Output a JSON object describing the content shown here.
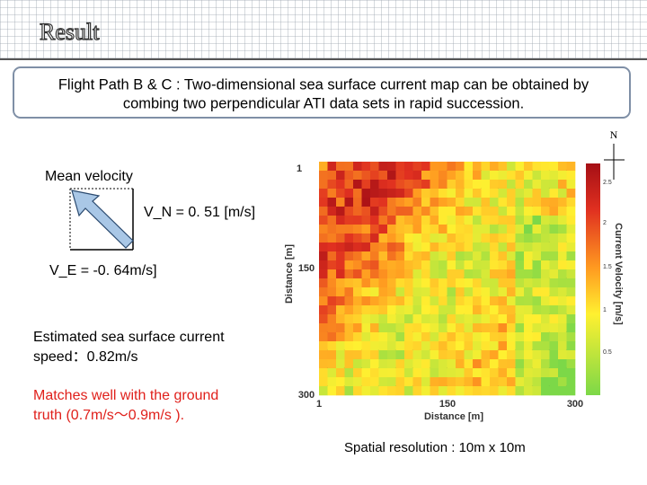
{
  "header": {
    "title": "Result"
  },
  "summary_box": {
    "lines": [
      "Flight Path B & C : Two-dimensional sea surface current map can be obtained by",
      "combing two perpendicular ATI data sets in rapid succession."
    ]
  },
  "compass": {
    "label": "N"
  },
  "velocity_diagram": {
    "title": "Mean velocity",
    "north_component": "V_N = 0. 51 [m/s]",
    "east_component": "V_E = -0. 64m/s]"
  },
  "estimate": {
    "lines": [
      "Estimated sea surface current",
      "speed：0.82m/s"
    ]
  },
  "comparison": {
    "lines": [
      "Matches well with the ground",
      "truth (0.7m/s～0.9m/s )."
    ]
  },
  "figure": {
    "y_axis_label": "Distance [m]",
    "y_ticks": [
      "1",
      "150",
      "300"
    ],
    "x_axis_label": "Distance [m]",
    "x_ticks": [
      "1",
      "150",
      "300"
    ],
    "colorbar_label": "Current Velocity [m/s]",
    "colorbar_ticks": [
      "2.5",
      "2",
      "1.5",
      "1",
      "0.5"
    ]
  },
  "footnote": "Spatial resolution : 10m x 10m"
}
